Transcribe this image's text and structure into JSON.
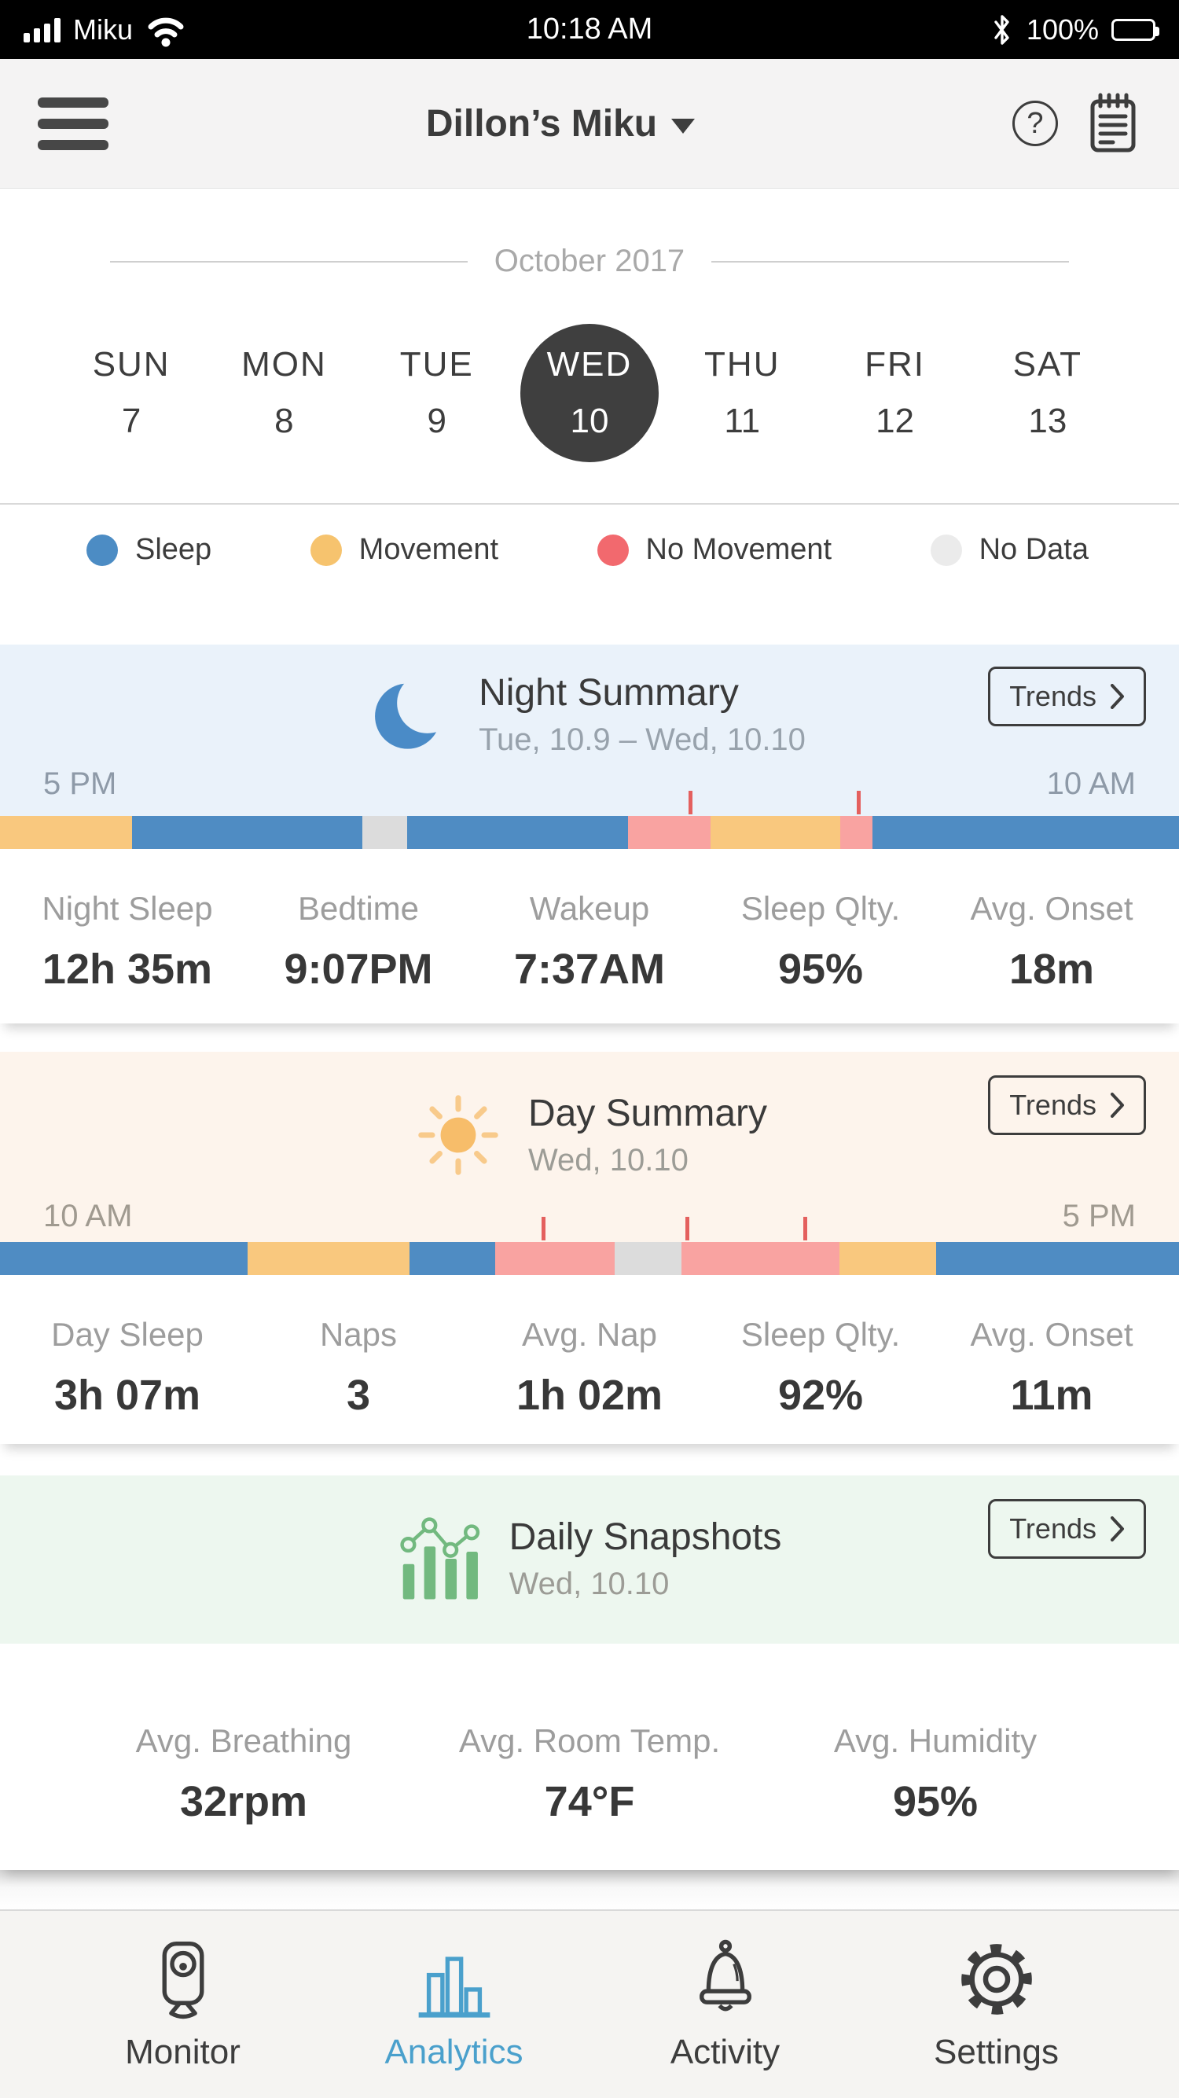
{
  "status_bar": {
    "carrier": "Miku",
    "time": "10:18 AM",
    "battery_pct": "100%"
  },
  "header": {
    "title": "Dillon’s Miku",
    "help_glyph": "?"
  },
  "calendar": {
    "month": "October 2017",
    "days": [
      {
        "dow": "SUN",
        "date": "7",
        "selected": false
      },
      {
        "dow": "MON",
        "date": "8",
        "selected": false
      },
      {
        "dow": "TUE",
        "date": "9",
        "selected": false
      },
      {
        "dow": "WED",
        "date": "10",
        "selected": true
      },
      {
        "dow": "THU",
        "date": "11",
        "selected": false
      },
      {
        "dow": "FRI",
        "date": "12",
        "selected": false
      },
      {
        "dow": "SAT",
        "date": "13",
        "selected": false
      }
    ]
  },
  "legend": {
    "items": [
      {
        "label": "Sleep",
        "color": "#4c8cc4"
      },
      {
        "label": "Movement",
        "color": "#f6c36e"
      },
      {
        "label": "No Movement",
        "color": "#f2696e"
      },
      {
        "label": "No Data",
        "color": "#ebebeb"
      }
    ]
  },
  "colors": {
    "sleep": "#4f8cc3",
    "movement": "#f9c87e",
    "no_movement": "#f9a3a1",
    "no_data": "#dcdcdc",
    "tick": "#e4605e",
    "accent_blue": "#4aa0cc"
  },
  "night_summary": {
    "title": "Night Summary",
    "date_range": "Tue, 10.9 – Wed, 10.10",
    "trends_label": "Trends",
    "start_label": "5 PM",
    "end_label": "10 AM",
    "timeline": {
      "segments": [
        {
          "type": "movement",
          "pct": 11.2
        },
        {
          "type": "sleep",
          "pct": 19.5
        },
        {
          "type": "no_data",
          "pct": 3.8
        },
        {
          "type": "sleep",
          "pct": 18.8
        },
        {
          "type": "no_movement",
          "pct": 7.0
        },
        {
          "type": "movement",
          "pct": 11.0
        },
        {
          "type": "no_movement",
          "pct": 2.7
        },
        {
          "type": "sleep",
          "pct": 26.0
        }
      ],
      "ticks_pct": [
        58.4,
        72.7
      ]
    },
    "stats": [
      {
        "label": "Night Sleep",
        "value": "12h 35m"
      },
      {
        "label": "Bedtime",
        "value": "9:07PM"
      },
      {
        "label": "Wakeup",
        "value": "7:37AM"
      },
      {
        "label": "Sleep Qlty.",
        "value": "95%"
      },
      {
        "label": "Avg. Onset",
        "value": "18m"
      }
    ]
  },
  "day_summary": {
    "title": "Day Summary",
    "date": "Wed, 10.10",
    "trends_label": "Trends",
    "start_label": "10 AM",
    "end_label": "5 PM",
    "timeline": {
      "segments": [
        {
          "type": "sleep",
          "pct": 21.0
        },
        {
          "type": "movement",
          "pct": 13.7
        },
        {
          "type": "sleep",
          "pct": 7.3
        },
        {
          "type": "no_movement",
          "pct": 10.1
        },
        {
          "type": "no_data",
          "pct": 5.7
        },
        {
          "type": "no_movement",
          "pct": 13.4
        },
        {
          "type": "movement",
          "pct": 8.2
        },
        {
          "type": "sleep",
          "pct": 20.6
        }
      ],
      "ticks_pct": [
        45.9,
        58.1,
        68.1
      ]
    },
    "stats": [
      {
        "label": "Day Sleep",
        "value": "3h 07m"
      },
      {
        "label": "Naps",
        "value": "3"
      },
      {
        "label": "Avg. Nap",
        "value": "1h 02m"
      },
      {
        "label": "Sleep Qlty.",
        "value": "92%"
      },
      {
        "label": "Avg. Onset",
        "value": "11m"
      }
    ]
  },
  "daily_snapshots": {
    "title": "Daily Snapshots",
    "date": "Wed, 10.10",
    "trends_label": "Trends",
    "stats": [
      {
        "label": "Avg. Breathing",
        "value": "32rpm"
      },
      {
        "label": "Avg. Room Temp.",
        "value": "74°F"
      },
      {
        "label": "Avg. Humidity",
        "value": "95%"
      }
    ]
  },
  "bottom_nav": {
    "items": [
      {
        "label": "Monitor",
        "active": false
      },
      {
        "label": "Analytics",
        "active": true
      },
      {
        "label": "Activity",
        "active": false
      },
      {
        "label": "Settings",
        "active": false
      }
    ]
  }
}
